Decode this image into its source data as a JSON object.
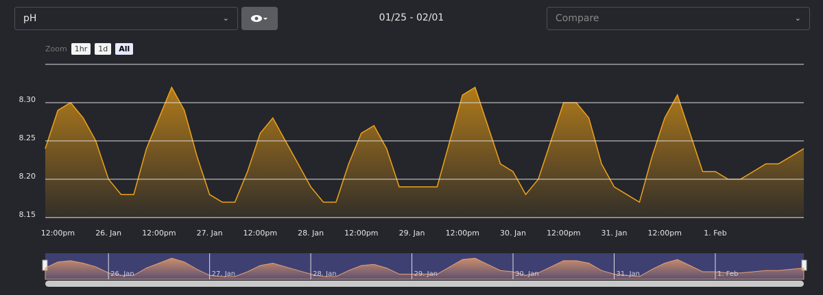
{
  "toolbar": {
    "metric": "pH",
    "date_range": "01/25 - 02/01",
    "compare_placeholder": "Compare"
  },
  "zoom": {
    "label": "Zoom",
    "buttons": [
      "1hr",
      "1d",
      "All"
    ],
    "active": "All"
  },
  "chart_data": {
    "type": "area",
    "categories": [
      null,
      "12:00pm",
      null,
      null,
      null,
      "26. Jan",
      null,
      null,
      null,
      "12:00pm",
      null,
      null,
      null,
      "27. Jan",
      null,
      null,
      null,
      "12:00pm",
      null,
      null,
      null,
      "28. Jan",
      null,
      null,
      null,
      "12:00pm",
      null,
      null,
      null,
      "29. Jan",
      null,
      null,
      null,
      "12:00pm",
      null,
      null,
      null,
      "30. Jan",
      null,
      null,
      null,
      "12:00pm",
      null,
      null,
      null,
      "31. Jan",
      null,
      null,
      null,
      "12:00pm",
      null,
      null,
      null,
      "1. Feb",
      null,
      null,
      null,
      null,
      null,
      null,
      null
    ],
    "values": [
      8.24,
      8.29,
      8.3,
      8.28,
      8.25,
      8.2,
      8.18,
      8.18,
      8.24,
      8.28,
      8.32,
      8.29,
      8.23,
      8.18,
      8.17,
      8.17,
      8.21,
      8.26,
      8.28,
      8.25,
      8.22,
      8.19,
      8.17,
      8.17,
      8.22,
      8.26,
      8.27,
      8.24,
      8.19,
      8.19,
      8.19,
      8.19,
      8.25,
      8.31,
      8.32,
      8.27,
      8.22,
      8.21,
      8.18,
      8.2,
      8.25,
      8.3,
      8.3,
      8.28,
      8.22,
      8.19,
      8.18,
      8.17,
      8.23,
      8.28,
      8.31,
      8.26,
      8.21,
      8.21,
      8.2,
      8.2,
      8.21,
      8.22,
      8.22,
      8.23,
      8.24
    ],
    "color": "#f0a21c",
    "ylim": [
      8.148,
      8.35
    ],
    "yticks": [
      8.15,
      {
        "value": 8.2,
        "label": "8.20"
      },
      8.25,
      {
        "value": 8.3,
        "label": "8.30"
      }
    ],
    "grid": true
  },
  "navigator": {
    "labels": [
      "26. Jan",
      "27. Jan",
      "28. Jan",
      "29. Jan",
      "30. Jan",
      "31. Jan",
      "1. Feb"
    ]
  }
}
